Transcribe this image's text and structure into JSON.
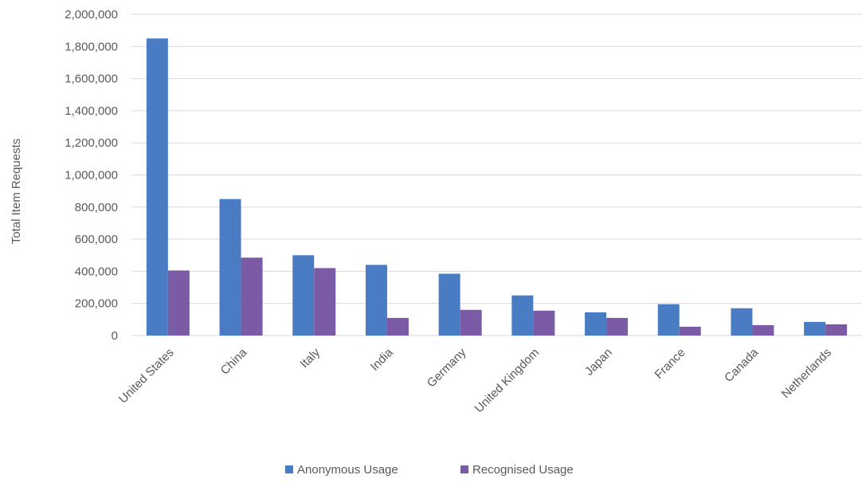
{
  "chart_data": {
    "type": "bar",
    "title": "",
    "xlabel": "",
    "ylabel": "Total Item Requests",
    "ylim": [
      0,
      2000000
    ],
    "ytick_step": 200000,
    "ytick_labels": [
      "0",
      "200,000",
      "400,000",
      "600,000",
      "800,000",
      "1,000,000",
      "1,200,000",
      "1,400,000",
      "1,600,000",
      "1,800,000",
      "2,000,000"
    ],
    "grid": true,
    "legend_position": "bottom",
    "categories": [
      "United States",
      "China",
      "Italy",
      "India",
      "Germany",
      "United Kingdom",
      "Japan",
      "France",
      "Canada",
      "Netherlands"
    ],
    "series": [
      {
        "name": "Anonymous Usage",
        "color": "#4a7cc4",
        "values": [
          1850000,
          850000,
          500000,
          440000,
          385000,
          250000,
          145000,
          195000,
          170000,
          85000
        ]
      },
      {
        "name": "Recognised Usage",
        "color": "#7b5aa6",
        "values": [
          405000,
          485000,
          420000,
          110000,
          160000,
          155000,
          110000,
          55000,
          65000,
          70000
        ]
      }
    ]
  }
}
